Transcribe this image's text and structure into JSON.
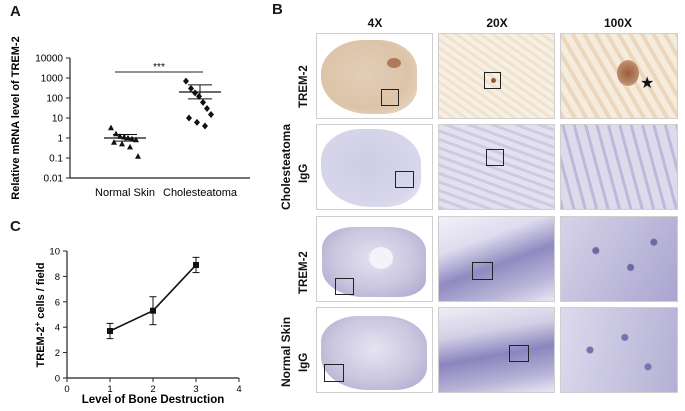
{
  "panels": {
    "A": {
      "letter": "A",
      "ylabel": "Relative mRNA level of TREM-2",
      "yticks": [
        "10000",
        "1000",
        "100",
        "10",
        "1",
        "0.1",
        "0.01"
      ],
      "groups": [
        "Normal Skin",
        "Cholesteatoma"
      ],
      "significance": "***"
    },
    "B": {
      "letter": "B",
      "columns": [
        "4X",
        "20X",
        "100X"
      ],
      "group_labels": [
        "Cholesteatoma",
        "Normal Skin"
      ],
      "stain_labels": [
        "TREM-2",
        "IgG",
        "TREM-2",
        "IgG"
      ]
    },
    "C": {
      "letter": "C",
      "ylabel_main": "TREM-2",
      "ylabel_sup": "+",
      "ylabel_rest": " cells / field",
      "xlabel": "Level of Bone Destruction",
      "xticks": [
        "0",
        "1",
        "2",
        "3",
        "4"
      ],
      "yticks": [
        "0",
        "2",
        "4",
        "6",
        "8",
        "10"
      ]
    }
  },
  "chart_data": [
    {
      "type": "scatter",
      "panel": "A",
      "ylabel": "Relative mRNA level of TREM-2",
      "yscale": "log",
      "ylim": [
        0.01,
        10000
      ],
      "categories": [
        "Normal Skin",
        "Cholesteatoma"
      ],
      "series": [
        {
          "name": "Normal Skin",
          "marker": "triangle",
          "values": [
            3.2,
            1.6,
            1.2,
            1.1,
            1.0,
            0.9,
            0.8,
            0.6,
            0.5,
            0.35,
            0.12
          ],
          "mean": 1.0,
          "sem_low": 0.7,
          "sem_high": 1.5
        },
        {
          "name": "Cholesteatoma",
          "marker": "diamond",
          "values": [
            700,
            300,
            180,
            120,
            60,
            30,
            15,
            10,
            6,
            4
          ],
          "mean": 200,
          "sem_low": 90,
          "sem_high": 450
        }
      ],
      "significance": "***"
    },
    {
      "type": "line",
      "panel": "C",
      "xlabel": "Level of Bone Destruction",
      "ylabel": "TREM-2+ cells / field",
      "xlim": [
        0,
        4
      ],
      "ylim": [
        0,
        10
      ],
      "x": [
        1,
        2,
        3
      ],
      "y": [
        3.7,
        5.3,
        8.9
      ],
      "err": [
        0.6,
        1.1,
        0.6
      ]
    }
  ]
}
